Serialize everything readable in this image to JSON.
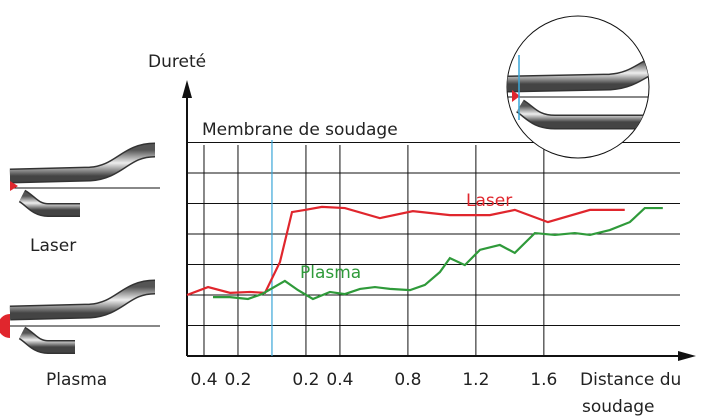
{
  "chart_data": {
    "type": "line",
    "y_label": "Dureté",
    "x_label": [
      "Distance du",
      "soudage"
    ],
    "membrane": {
      "label": "Membrane de soudage",
      "x": 0,
      "color": "#3aa6d8"
    },
    "xlim": [
      -0.5,
      2.46
    ],
    "ylim": [
      0,
      9
    ],
    "xticks": [
      {
        "value": -0.4,
        "label": "0.4"
      },
      {
        "value": -0.2,
        "label": "0.2"
      },
      0.2,
      0.4,
      0.8,
      1.2,
      1.6
    ],
    "yticks": [
      1,
      2,
      3,
      4,
      5,
      6,
      7
    ],
    "grid": true,
    "series": [
      {
        "name": "Laser",
        "color": "#e0262d",
        "x": [
          -0.5,
          -0.376,
          -0.247,
          -0.129,
          -0.041,
          0.047,
          0.118,
          0.194,
          0.294,
          0.429,
          0.635,
          0.829,
          1.047,
          1.282,
          1.429,
          1.624,
          1.871,
          2.076
        ],
        "values": [
          2.0,
          2.26,
          2.07,
          2.1,
          2.07,
          3.08,
          4.72,
          4.79,
          4.89,
          4.85,
          4.52,
          4.75,
          4.62,
          4.62,
          4.79,
          4.39,
          4.79,
          4.79
        ]
      },
      {
        "name": "Plasma",
        "color": "#2f9a3a",
        "x": [
          -0.347,
          -0.247,
          -0.141,
          -0.059,
          0.076,
          0.153,
          0.241,
          0.341,
          0.429,
          0.518,
          0.606,
          0.694,
          0.812,
          0.9,
          0.988,
          1.047,
          1.135,
          1.224,
          1.341,
          1.429,
          1.547,
          1.665,
          1.782,
          1.871,
          1.988,
          2.106,
          2.194,
          2.3
        ],
        "values": [
          1.93,
          1.93,
          1.87,
          2.03,
          2.46,
          2.16,
          1.87,
          2.1,
          2.03,
          2.2,
          2.26,
          2.2,
          2.16,
          2.33,
          2.75,
          3.21,
          2.98,
          3.48,
          3.64,
          3.38,
          4.03,
          3.97,
          4.03,
          3.97,
          4.13,
          4.39,
          4.85,
          4.85
        ]
      }
    ]
  },
  "figures": {
    "laser": "Laser",
    "plasma": "Plasma"
  }
}
